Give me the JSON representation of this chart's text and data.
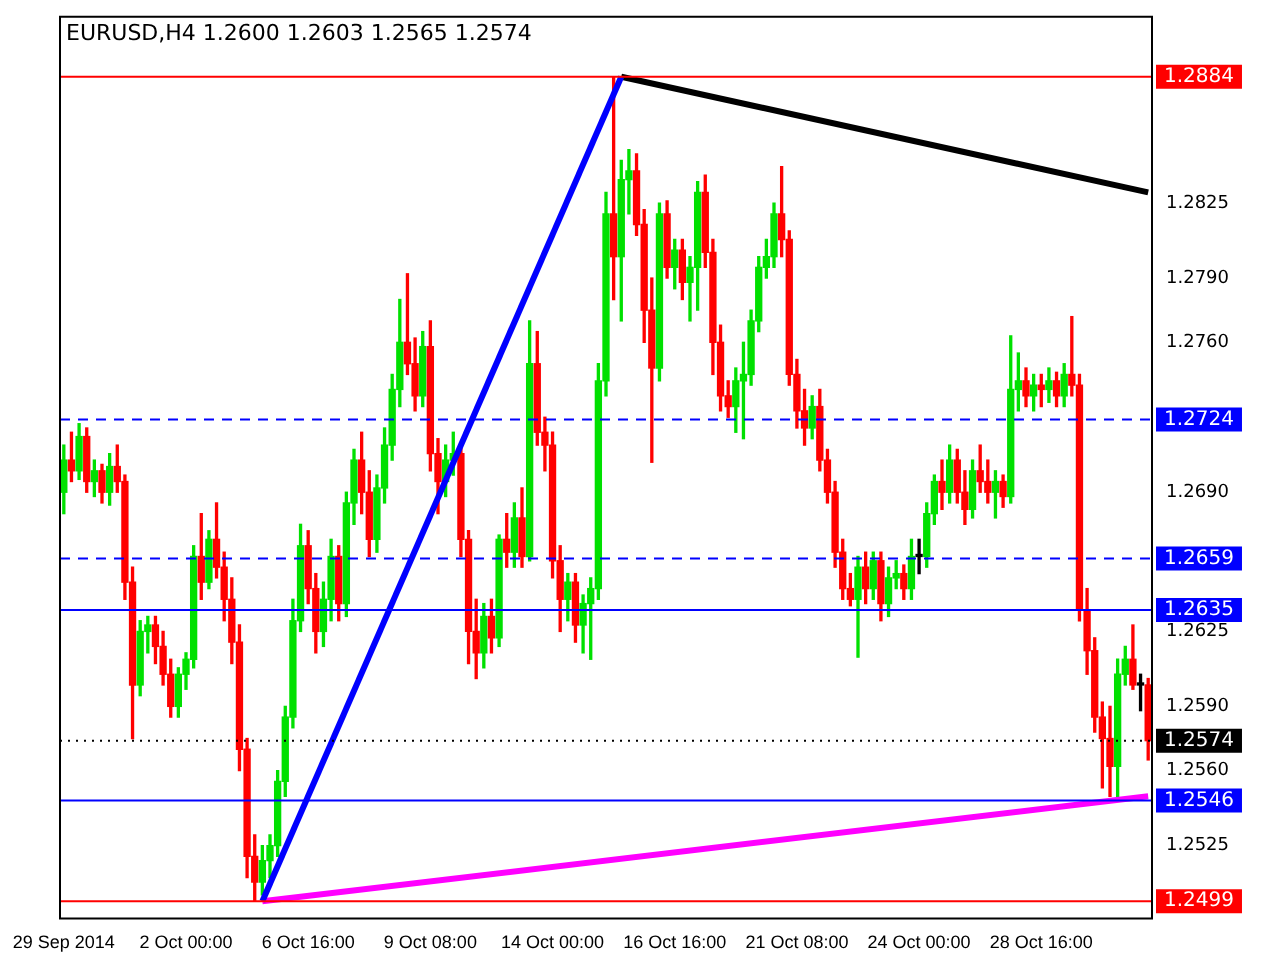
{
  "chart_data": {
    "type": "candlestick",
    "title": "EURUSD,H4 1.2600 1.2603 1.2565 1.2574",
    "categories": [
      "29 Sep 2014",
      null,
      null,
      null,
      null,
      null,
      null,
      null,
      null,
      null,
      null,
      null,
      null,
      null,
      null,
      null,
      "2 Oct 00:00",
      null,
      null,
      null,
      null,
      null,
      null,
      null,
      null,
      null,
      null,
      null,
      null,
      null,
      null,
      null,
      "6 Oct 16:00",
      null,
      null,
      null,
      null,
      null,
      null,
      null,
      null,
      null,
      null,
      null,
      null,
      null,
      null,
      null,
      "9 Oct 08:00",
      null,
      null,
      null,
      null,
      null,
      null,
      null,
      null,
      null,
      null,
      null,
      null,
      null,
      null,
      null,
      "14 Oct 00:00",
      null,
      null,
      null,
      null,
      null,
      null,
      null,
      null,
      null,
      null,
      null,
      null,
      null,
      null,
      null,
      "16 Oct 16:00",
      null,
      null,
      null,
      null,
      null,
      null,
      null,
      null,
      null,
      null,
      null,
      null,
      null,
      null,
      null,
      "21 Oct 08:00",
      null,
      null,
      null,
      null,
      null,
      null,
      null,
      null,
      null,
      null,
      null,
      null,
      null,
      null,
      null,
      "24 Oct 00:00",
      null,
      null,
      null,
      null,
      null,
      null,
      null,
      null,
      null,
      null,
      null,
      null,
      null,
      null,
      null,
      "28 Oct 16:00",
      null,
      null,
      null,
      null,
      null,
      null,
      null,
      null,
      null,
      null,
      null,
      null,
      null,
      null
    ],
    "ohlc": [
      [
        1.269,
        1.2712,
        1.268,
        1.2705
      ],
      [
        1.2705,
        1.2718,
        1.2695,
        1.27
      ],
      [
        1.27,
        1.2722,
        1.2696,
        1.2716
      ],
      [
        1.2716,
        1.272,
        1.269,
        1.2695
      ],
      [
        1.2695,
        1.2705,
        1.2688,
        1.27
      ],
      [
        1.27,
        1.2703,
        1.2685,
        1.269
      ],
      [
        1.269,
        1.2708,
        1.2684,
        1.2702
      ],
      [
        1.2702,
        1.2712,
        1.269,
        1.2695
      ],
      [
        1.2695,
        1.2698,
        1.264,
        1.2648
      ],
      [
        1.2648,
        1.2655,
        1.2575,
        1.26
      ],
      [
        1.26,
        1.263,
        1.2595,
        1.2625
      ],
      [
        1.2625,
        1.2632,
        1.2615,
        1.2628
      ],
      [
        1.2628,
        1.2632,
        1.261,
        1.2618
      ],
      [
        1.2618,
        1.2625,
        1.26,
        1.2605
      ],
      [
        1.2605,
        1.2612,
        1.2585,
        1.259
      ],
      [
        1.259,
        1.2608,
        1.2585,
        1.2605
      ],
      [
        1.2605,
        1.2615,
        1.2598,
        1.2612
      ],
      [
        1.2612,
        1.2665,
        1.2608,
        1.266
      ],
      [
        1.266,
        1.268,
        1.264,
        1.2648
      ],
      [
        1.2648,
        1.2672,
        1.2645,
        1.2668
      ],
      [
        1.2668,
        1.2685,
        1.265,
        1.2655
      ],
      [
        1.2655,
        1.2662,
        1.263,
        1.264
      ],
      [
        1.264,
        1.265,
        1.261,
        1.262
      ],
      [
        1.262,
        1.2628,
        1.256,
        1.257
      ],
      [
        1.257,
        1.2575,
        1.251,
        1.252
      ],
      [
        1.252,
        1.253,
        1.2499,
        1.2508
      ],
      [
        1.2508,
        1.2525,
        1.2502,
        1.2518
      ],
      [
        1.2518,
        1.253,
        1.251,
        1.2525
      ],
      [
        1.2525,
        1.256,
        1.252,
        1.2555
      ],
      [
        1.2555,
        1.259,
        1.2548,
        1.2585
      ],
      [
        1.2585,
        1.264,
        1.258,
        1.263
      ],
      [
        1.263,
        1.2675,
        1.2625,
        1.2665
      ],
      [
        1.2665,
        1.2672,
        1.2638,
        1.2645
      ],
      [
        1.2645,
        1.2652,
        1.2615,
        1.2625
      ],
      [
        1.2625,
        1.2648,
        1.2618,
        1.264
      ],
      [
        1.264,
        1.2668,
        1.263,
        1.266
      ],
      [
        1.266,
        1.2665,
        1.263,
        1.2638
      ],
      [
        1.2638,
        1.269,
        1.2632,
        1.2685
      ],
      [
        1.2685,
        1.271,
        1.2675,
        1.2705
      ],
      [
        1.2705,
        1.2718,
        1.268,
        1.269
      ],
      [
        1.269,
        1.27,
        1.266,
        1.2668
      ],
      [
        1.2668,
        1.2698,
        1.2662,
        1.2692
      ],
      [
        1.2692,
        1.272,
        1.2685,
        1.2712
      ],
      [
        1.2712,
        1.2745,
        1.2705,
        1.2738
      ],
      [
        1.2738,
        1.278,
        1.273,
        1.276
      ],
      [
        1.276,
        1.2792,
        1.2745,
        1.275
      ],
      [
        1.275,
        1.2762,
        1.2728,
        1.2735
      ],
      [
        1.2735,
        1.2765,
        1.273,
        1.2758
      ],
      [
        1.2758,
        1.277,
        1.27,
        1.2708
      ],
      [
        1.2708,
        1.2715,
        1.268,
        1.2695
      ],
      [
        1.2695,
        1.2712,
        1.2688,
        1.2705
      ],
      [
        1.2705,
        1.2718,
        1.2698,
        1.2708
      ],
      [
        1.2708,
        1.2712,
        1.266,
        1.2668
      ],
      [
        1.2668,
        1.2672,
        1.261,
        1.2625
      ],
      [
        1.2625,
        1.264,
        1.2603,
        1.2615
      ],
      [
        1.2615,
        1.2638,
        1.2608,
        1.2632
      ],
      [
        1.2632,
        1.264,
        1.2615,
        1.2622
      ],
      [
        1.2622,
        1.267,
        1.2618,
        1.2668
      ],
      [
        1.2668,
        1.268,
        1.2655,
        1.2662
      ],
      [
        1.2662,
        1.2685,
        1.2655,
        1.2678
      ],
      [
        1.2678,
        1.2692,
        1.2655,
        1.266
      ],
      [
        1.266,
        1.277,
        1.2658,
        1.275
      ],
      [
        1.275,
        1.2765,
        1.2712,
        1.2718
      ],
      [
        1.2718,
        1.2725,
        1.27,
        1.2712
      ],
      [
        1.2712,
        1.2718,
        1.265,
        1.2658
      ],
      [
        1.2658,
        1.2665,
        1.2625,
        1.264
      ],
      [
        1.264,
        1.2652,
        1.263,
        1.2648
      ],
      [
        1.2648,
        1.2652,
        1.262,
        1.2628
      ],
      [
        1.2628,
        1.2642,
        1.2615,
        1.2638
      ],
      [
        1.2638,
        1.265,
        1.2612,
        1.2645
      ],
      [
        1.2645,
        1.275,
        1.264,
        1.2742
      ],
      [
        1.2742,
        1.283,
        1.2735,
        1.282
      ],
      [
        1.282,
        1.2884,
        1.278,
        1.28
      ],
      [
        1.28,
        1.2845,
        1.277,
        1.2836
      ],
      [
        1.2836,
        1.285,
        1.282,
        1.284
      ],
      [
        1.284,
        1.2848,
        1.281,
        1.2815
      ],
      [
        1.2815,
        1.2822,
        1.276,
        1.2775
      ],
      [
        1.2775,
        1.279,
        1.2704,
        1.2748
      ],
      [
        1.2748,
        1.2825,
        1.2742,
        1.282
      ],
      [
        1.282,
        1.2826,
        1.279,
        1.2795
      ],
      [
        1.2795,
        1.2808,
        1.2785,
        1.2803
      ],
      [
        1.2803,
        1.2808,
        1.278,
        1.2788
      ],
      [
        1.2788,
        1.28,
        1.277,
        1.2795
      ],
      [
        1.2795,
        1.2835,
        1.2775,
        1.283
      ],
      [
        1.283,
        1.2838,
        1.2795,
        1.2802
      ],
      [
        1.2802,
        1.2808,
        1.2745,
        1.276
      ],
      [
        1.276,
        1.2768,
        1.2728,
        1.2735
      ],
      [
        1.2735,
        1.2742,
        1.2725,
        1.273
      ],
      [
        1.273,
        1.2748,
        1.2718,
        1.2742
      ],
      [
        1.2742,
        1.276,
        1.2715,
        1.2745
      ],
      [
        1.2745,
        1.2775,
        1.274,
        1.277
      ],
      [
        1.277,
        1.28,
        1.2765,
        1.2795
      ],
      [
        1.2795,
        1.2808,
        1.279,
        1.28
      ],
      [
        1.28,
        1.2825,
        1.2795,
        1.282
      ],
      [
        1.282,
        1.2842,
        1.28,
        1.2808
      ],
      [
        1.2808,
        1.2812,
        1.274,
        1.2745
      ],
      [
        1.2745,
        1.2752,
        1.272,
        1.2728
      ],
      [
        1.2728,
        1.2738,
        1.2712,
        1.272
      ],
      [
        1.272,
        1.2735,
        1.2715,
        1.273
      ],
      [
        1.273,
        1.2738,
        1.27,
        1.2705
      ],
      [
        1.2705,
        1.271,
        1.2685,
        1.269
      ],
      [
        1.269,
        1.2695,
        1.2655,
        1.2662
      ],
      [
        1.2662,
        1.2668,
        1.264,
        1.2645
      ],
      [
        1.2645,
        1.2652,
        1.2637,
        1.264
      ],
      [
        1.264,
        1.266,
        1.2613,
        1.2655
      ],
      [
        1.2655,
        1.2662,
        1.2638,
        1.2645
      ],
      [
        1.2645,
        1.2662,
        1.264,
        1.2658
      ],
      [
        1.2658,
        1.2662,
        1.263,
        1.2638
      ],
      [
        1.2638,
        1.2655,
        1.2632,
        1.265
      ],
      [
        1.265,
        1.2658,
        1.2645,
        1.2652
      ],
      [
        1.2652,
        1.2656,
        1.264,
        1.2645
      ],
      [
        1.2645,
        1.2668,
        1.264,
        1.266
      ],
      [
        1.266,
        1.2668,
        1.2652,
        1.266
      ],
      [
        1.266,
        1.2685,
        1.2655,
        1.268
      ],
      [
        1.268,
        1.2698,
        1.2675,
        1.2695
      ],
      [
        1.2695,
        1.2705,
        1.2682,
        1.269
      ],
      [
        1.269,
        1.2712,
        1.2685,
        1.2705
      ],
      [
        1.2705,
        1.271,
        1.2685,
        1.269
      ],
      [
        1.269,
        1.27,
        1.2675,
        1.2682
      ],
      [
        1.2682,
        1.2705,
        1.2678,
        1.27
      ],
      [
        1.27,
        1.2712,
        1.269,
        1.2695
      ],
      [
        1.2695,
        1.2705,
        1.2685,
        1.269
      ],
      [
        1.269,
        1.27,
        1.2678,
        1.2695
      ],
      [
        1.2695,
        1.2698,
        1.2683,
        1.2688
      ],
      [
        1.2688,
        1.2763,
        1.2685,
        1.2738
      ],
      [
        1.2738,
        1.2755,
        1.2728,
        1.2742
      ],
      [
        1.2742,
        1.2748,
        1.273,
        1.2735
      ],
      [
        1.2735,
        1.2745,
        1.2728,
        1.274
      ],
      [
        1.274,
        1.2745,
        1.273,
        1.2738
      ],
      [
        1.2738,
        1.2748,
        1.2732,
        1.2742
      ],
      [
        1.2742,
        1.2746,
        1.273,
        1.2735
      ],
      [
        1.2735,
        1.275,
        1.273,
        1.2745
      ],
      [
        1.2745,
        1.2772,
        1.2735,
        1.274
      ],
      [
        1.274,
        1.2745,
        1.263,
        1.2635
      ],
      [
        1.2635,
        1.2645,
        1.2605,
        1.2616
      ],
      [
        1.2616,
        1.2622,
        1.2578,
        1.2585
      ],
      [
        1.2585,
        1.2592,
        1.2552,
        1.2575
      ],
      [
        1.2575,
        1.259,
        1.2548,
        1.2562
      ],
      [
        1.2562,
        1.2612,
        1.2546,
        1.2605
      ],
      [
        1.2605,
        1.2618,
        1.26,
        1.2612
      ],
      [
        1.2612,
        1.2628,
        1.2598,
        1.26
      ],
      [
        1.26,
        1.2605,
        1.2588,
        1.26
      ],
      [
        1.26,
        1.2603,
        1.2565,
        1.2574
      ]
    ],
    "series": [
      {
        "type": "line",
        "color": "#0000ff",
        "values": [
          null,
          null,
          null,
          null,
          null,
          null,
          null,
          null,
          null,
          null,
          null,
          null,
          null,
          null,
          null,
          null,
          null,
          null,
          null,
          null,
          null,
          null,
          null,
          null,
          null,
          null,
          1.2499,
          null,
          null,
          null,
          null,
          null,
          null,
          null,
          null,
          null,
          null,
          null,
          null,
          null,
          null,
          null,
          null,
          null,
          null,
          null,
          null,
          null,
          null,
          null,
          null,
          null,
          null,
          null,
          null,
          null,
          null,
          null,
          null,
          null,
          null,
          null,
          null,
          null,
          null,
          null,
          null,
          null,
          null,
          null,
          null,
          null,
          null,
          1.2884,
          null,
          null,
          null,
          null,
          null,
          null,
          null,
          null,
          null,
          null,
          null,
          null,
          null,
          null,
          null,
          null,
          null,
          null,
          null,
          null,
          null,
          null,
          null,
          null,
          null,
          null,
          null,
          null,
          null,
          null,
          null,
          null,
          null,
          null,
          null,
          null,
          null,
          null,
          null,
          null,
          null,
          null,
          null,
          null,
          null,
          null,
          null,
          null,
          null,
          null,
          null,
          null,
          null,
          null,
          null,
          null,
          null,
          null,
          null,
          null,
          null,
          null,
          null,
          null,
          null,
          null,
          null,
          null,
          null
        ]
      },
      {
        "type": "line",
        "color": "#000000",
        "values": [
          null,
          null,
          null,
          null,
          null,
          null,
          null,
          null,
          null,
          null,
          null,
          null,
          null,
          null,
          null,
          null,
          null,
          null,
          null,
          null,
          null,
          null,
          null,
          null,
          null,
          null,
          null,
          null,
          null,
          null,
          null,
          null,
          null,
          null,
          null,
          null,
          null,
          null,
          null,
          null,
          null,
          null,
          null,
          null,
          null,
          null,
          null,
          null,
          null,
          null,
          null,
          null,
          null,
          null,
          null,
          null,
          null,
          null,
          null,
          null,
          null,
          null,
          null,
          null,
          null,
          null,
          null,
          null,
          null,
          null,
          null,
          null,
          null,
          1.2884,
          null,
          null,
          null,
          null,
          null,
          null,
          null,
          null,
          null,
          null,
          null,
          null,
          null,
          null,
          null,
          null,
          null,
          null,
          null,
          null,
          null,
          null,
          null,
          null,
          null,
          null,
          null,
          null,
          null,
          null,
          null,
          null,
          null,
          null,
          null,
          null,
          null,
          null,
          null,
          null,
          null,
          null,
          null,
          null,
          null,
          null,
          null,
          null,
          null,
          null,
          null,
          null,
          null,
          null,
          null,
          null,
          null,
          null,
          null,
          null,
          null,
          null,
          null,
          null,
          null,
          null,
          null,
          null,
          1.283
        ]
      },
      {
        "type": "line",
        "color": "#ff00ff",
        "values": [
          null,
          null,
          null,
          null,
          null,
          null,
          null,
          null,
          null,
          null,
          null,
          null,
          null,
          null,
          null,
          null,
          null,
          null,
          null,
          null,
          null,
          null,
          null,
          null,
          null,
          null,
          1.2499,
          null,
          null,
          null,
          null,
          null,
          null,
          null,
          null,
          null,
          null,
          null,
          null,
          null,
          null,
          null,
          null,
          null,
          null,
          null,
          null,
          null,
          null,
          null,
          null,
          null,
          null,
          null,
          null,
          null,
          null,
          null,
          null,
          null,
          null,
          null,
          null,
          null,
          null,
          null,
          null,
          null,
          null,
          null,
          null,
          null,
          null,
          null,
          null,
          null,
          null,
          null,
          null,
          null,
          null,
          null,
          null,
          null,
          null,
          null,
          null,
          null,
          null,
          null,
          null,
          null,
          null,
          null,
          null,
          null,
          null,
          null,
          null,
          null,
          null,
          null,
          null,
          null,
          null,
          null,
          null,
          null,
          null,
          null,
          null,
          null,
          null,
          null,
          null,
          null,
          null,
          null,
          null,
          null,
          null,
          null,
          null,
          null,
          null,
          null,
          null,
          null,
          null,
          null,
          null,
          null,
          null,
          null,
          null,
          null,
          null,
          null,
          null,
          null,
          null,
          null,
          1.2548
        ]
      }
    ],
    "ylim": [
      1.2491,
      1.2912
    ],
    "yticks": [
      {
        "value": 1.2525,
        "label": "1.2525"
      },
      {
        "value": 1.256,
        "label": "1.2560"
      },
      {
        "value": 1.259,
        "label": "1.2590"
      },
      {
        "value": 1.2625,
        "label": "1.2625"
      },
      {
        "value": 1.269,
        "label": "1.2690"
      },
      {
        "value": 1.276,
        "label": "1.2760"
      },
      {
        "value": 1.279,
        "label": "1.2790"
      },
      {
        "value": 1.2825,
        "label": "1.2825"
      }
    ],
    "ref_lines": [
      {
        "axis": "y",
        "value": 1.2884,
        "label": "1.2884",
        "color": "#ff0000",
        "line_style": "solid"
      },
      {
        "axis": "y",
        "value": 1.2724,
        "label": "1.2724",
        "color": "#0000ff",
        "line_style": "dashed"
      },
      {
        "axis": "y",
        "value": 1.2659,
        "label": "1.2659",
        "color": "#0000ff",
        "line_style": "dashed"
      },
      {
        "axis": "y",
        "value": 1.2635,
        "label": "1.2635",
        "color": "#0000ff",
        "line_style": "solid"
      },
      {
        "axis": "y",
        "value": 1.2574,
        "label": "1.2574",
        "color": "#000000",
        "line_style": "dotted"
      },
      {
        "axis": "y",
        "value": 1.2546,
        "label": "1.2546",
        "color": "#0000ff",
        "line_style": "solid"
      },
      {
        "axis": "y",
        "value": 1.2499,
        "label": "1.2499",
        "color": "#ff0000",
        "line_style": "solid"
      }
    ],
    "grid": false,
    "legend": false
  }
}
